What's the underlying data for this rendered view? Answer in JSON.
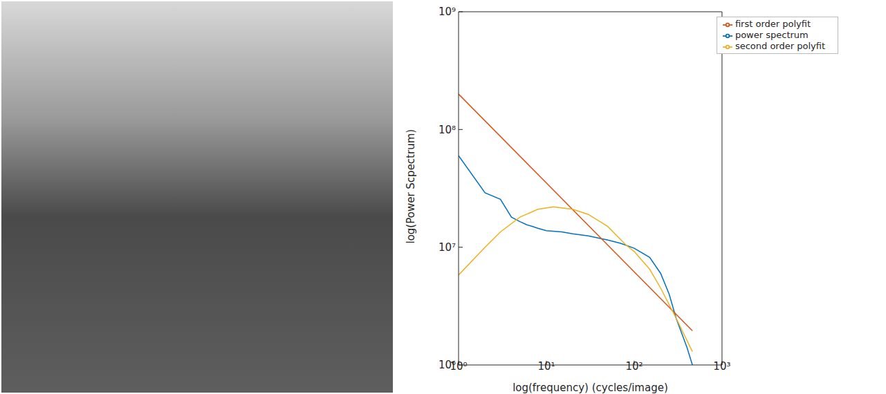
{
  "chart_data": {
    "type": "line",
    "log": true,
    "grid": false,
    "legend": "upper right",
    "xlabel": "log(frequency) (cycles/image)",
    "ylabel": "log(Power Scpectrum)",
    "xlim": [
      1,
      1000
    ],
    "xticks": [
      {
        "value": 1,
        "label": "10⁰"
      },
      {
        "value": 10,
        "label": "10¹"
      },
      {
        "value": 100,
        "label": "10²"
      },
      {
        "value": 1000,
        "label": "10³"
      }
    ],
    "ylim": [
      1000000,
      1000000000
    ],
    "yticks": [
      {
        "value": 1000000,
        "label": "10⁶"
      },
      {
        "value": 10000000,
        "label": "10⁷"
      },
      {
        "value": 100000000,
        "label": "10⁸"
      },
      {
        "value": 1000000000,
        "label": "10⁹"
      }
    ],
    "series": [
      {
        "name": "power spectrum",
        "color": "#0072bd",
        "x": [
          1,
          2,
          3,
          4,
          5,
          6,
          7,
          8,
          10,
          15,
          20,
          30,
          50,
          70,
          100,
          150,
          200,
          250,
          300,
          400,
          460
        ],
        "values": [
          60000000,
          29000000,
          25500000,
          18000000,
          16500000,
          15500000,
          15000000,
          14500000,
          13800000,
          13500000,
          13000000,
          12500000,
          11500000,
          10800000,
          9800000,
          8200000,
          6000000,
          4000000,
          2500000,
          1400000,
          1000000
        ]
      },
      {
        "name": "first order polyfit",
        "color": "#d95319",
        "x": [
          1,
          460
        ],
        "values": [
          200000000,
          1950000
        ]
      },
      {
        "name": "second order polyfit",
        "color": "#edb120",
        "x": [
          1,
          2,
          3,
          5,
          8,
          12,
          20,
          30,
          50,
          80,
          100,
          150,
          200,
          300,
          460
        ],
        "values": [
          5800000,
          10000000,
          13500000,
          18000000,
          21000000,
          22000000,
          21000000,
          19000000,
          15000000,
          10500000,
          9200000,
          6500000,
          4500000,
          2500000,
          1300000
        ]
      }
    ]
  }
}
